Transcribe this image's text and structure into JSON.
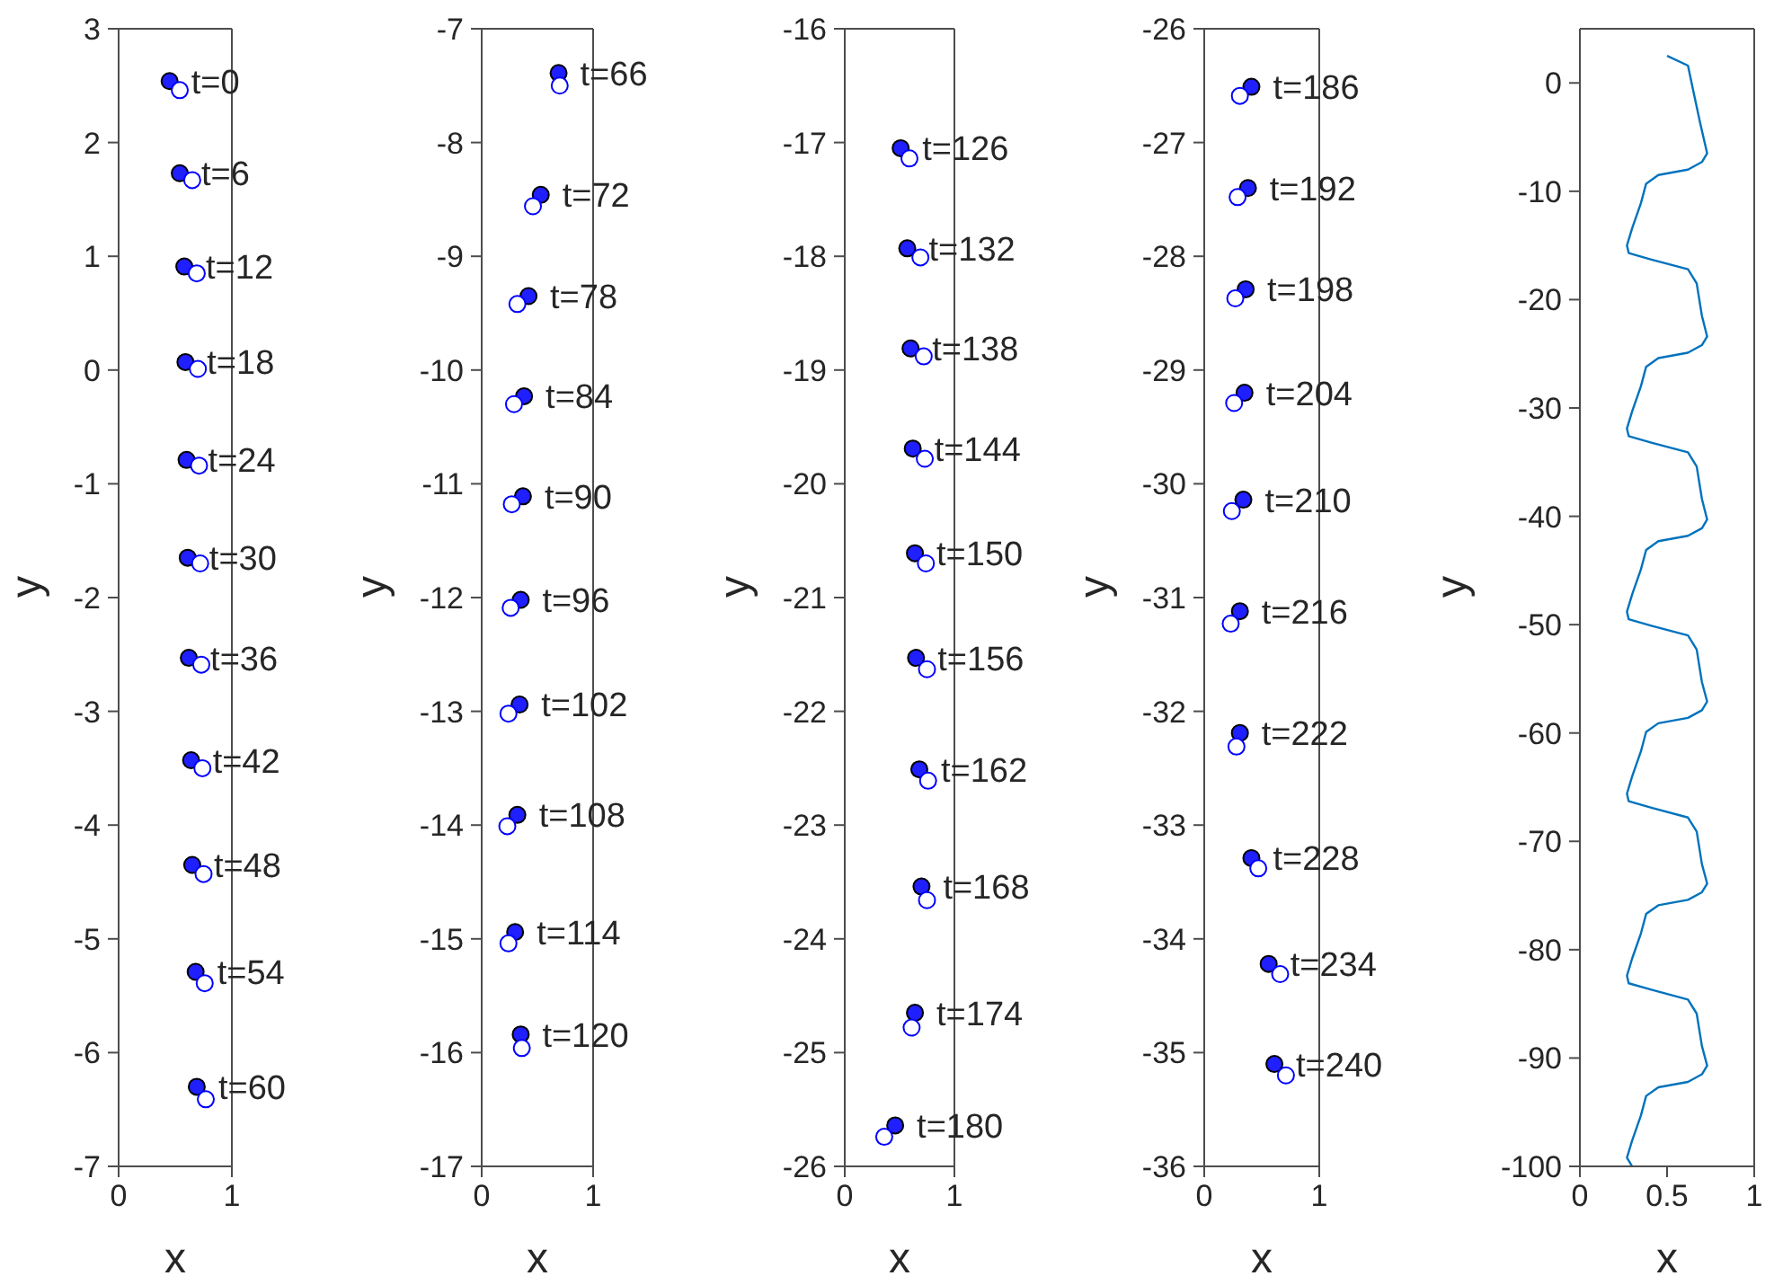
{
  "chart_data": [
    {
      "type": "scatter",
      "xlabel": "x",
      "ylabel": "y",
      "xlim": [
        0,
        1
      ],
      "xticks": [
        0,
        1
      ],
      "ylim": [
        -7,
        3
      ],
      "yticks": [
        -7,
        -6,
        -5,
        -4,
        -3,
        -2,
        -1,
        0,
        1,
        2,
        3
      ],
      "marker": "circle",
      "series": [
        {
          "color": "#1f1fff",
          "x": [
            0.45,
            0.54,
            0.58,
            0.59,
            0.6,
            0.61,
            0.62,
            0.64,
            0.65,
            0.68,
            0.69
          ],
          "values": [
            2.54,
            1.73,
            0.91,
            0.07,
            -0.79,
            -1.65,
            -2.53,
            -3.43,
            -4.35,
            -5.29,
            -6.3
          ]
        },
        {
          "color": "#0000ff",
          "x": [
            0.54,
            0.65,
            0.69,
            0.7,
            0.71,
            0.72,
            0.73,
            0.74,
            0.75,
            0.76,
            0.77
          ],
          "values": [
            2.46,
            1.67,
            0.85,
            0.01,
            -0.84,
            -1.7,
            -2.59,
            -3.5,
            -4.43,
            -5.39,
            -6.41
          ]
        }
      ],
      "annotations": [
        {
          "text": "t=0",
          "x": 0.45,
          "y": 2.54
        },
        {
          "text": "t=6",
          "x": 0.54,
          "y": 1.73
        },
        {
          "text": "t=12",
          "x": 0.58,
          "y": 0.91
        },
        {
          "text": "t=18",
          "x": 0.59,
          "y": 0.07
        },
        {
          "text": "t=24",
          "x": 0.6,
          "y": -0.79
        },
        {
          "text": "t=30",
          "x": 0.61,
          "y": -1.65
        },
        {
          "text": "t=36",
          "x": 0.62,
          "y": -2.53
        },
        {
          "text": "t=42",
          "x": 0.64,
          "y": -3.43
        },
        {
          "text": "t=48",
          "x": 0.65,
          "y": -4.35
        },
        {
          "text": "t=54",
          "x": 0.68,
          "y": -5.29
        },
        {
          "text": "t=60",
          "x": 0.69,
          "y": -6.3
        }
      ]
    },
    {
      "type": "scatter",
      "xlabel": "x",
      "ylabel": "y",
      "xlim": [
        0,
        1
      ],
      "xticks": [
        0,
        1
      ],
      "ylim": [
        -17,
        -7
      ],
      "yticks": [
        -17,
        -16,
        -15,
        -14,
        -13,
        -12,
        -11,
        -10,
        -9,
        -8,
        -7
      ],
      "marker": "circle",
      "series": [
        {
          "color": "#1f1fff",
          "x": [
            0.69,
            0.53,
            0.42,
            0.38,
            0.37,
            0.35,
            0.34,
            0.32,
            0.3,
            0.35
          ],
          "values": [
            -7.39,
            -8.46,
            -9.35,
            -10.23,
            -11.11,
            -12.02,
            -12.94,
            -13.91,
            -14.94,
            -15.84
          ]
        },
        {
          "color": "#0000ff",
          "x": [
            0.7,
            0.46,
            0.32,
            0.29,
            0.27,
            0.26,
            0.24,
            0.23,
            0.24,
            0.36
          ],
          "values": [
            -7.5,
            -8.56,
            -9.42,
            -10.3,
            -11.18,
            -12.09,
            -13.02,
            -14.01,
            -15.04,
            -15.96
          ]
        }
      ],
      "annotations": [
        {
          "text": "t=66",
          "x": 0.69,
          "y": -7.39
        },
        {
          "text": "t=72",
          "x": 0.53,
          "y": -8.46
        },
        {
          "text": "t=78",
          "x": 0.42,
          "y": -9.35
        },
        {
          "text": "t=84",
          "x": 0.38,
          "y": -10.23
        },
        {
          "text": "t=90",
          "x": 0.37,
          "y": -11.11
        },
        {
          "text": "t=96",
          "x": 0.35,
          "y": -12.02
        },
        {
          "text": "t=102",
          "x": 0.34,
          "y": -12.94
        },
        {
          "text": "t=108",
          "x": 0.32,
          "y": -13.91
        },
        {
          "text": "t=114",
          "x": 0.3,
          "y": -14.94
        },
        {
          "text": "t=120",
          "x": 0.35,
          "y": -15.84
        }
      ]
    },
    {
      "type": "scatter",
      "xlabel": "x",
      "ylabel": "y",
      "xlim": [
        0,
        1
      ],
      "xticks": [
        0,
        1
      ],
      "ylim": [
        -26,
        -16
      ],
      "yticks": [
        -26,
        -25,
        -24,
        -23,
        -22,
        -21,
        -20,
        -19,
        -18,
        -17,
        -16
      ],
      "marker": "circle",
      "series": [
        {
          "color": "#1f1fff",
          "x": [
            0.51,
            0.57,
            0.6,
            0.62,
            0.64,
            0.65,
            0.68,
            0.7,
            0.64,
            0.46
          ],
          "values": [
            -17.05,
            -17.93,
            -18.81,
            -19.69,
            -20.61,
            -21.53,
            -22.51,
            -23.54,
            -24.65,
            -25.64
          ]
        },
        {
          "color": "#0000ff",
          "x": [
            0.59,
            0.69,
            0.72,
            0.73,
            0.74,
            0.75,
            0.76,
            0.75,
            0.61,
            0.36
          ],
          "values": [
            -17.14,
            -18.01,
            -18.88,
            -19.78,
            -20.7,
            -21.63,
            -22.61,
            -23.66,
            -24.78,
            -25.74
          ]
        }
      ],
      "annotations": [
        {
          "text": "t=126",
          "x": 0.51,
          "y": -17.05
        },
        {
          "text": "t=132",
          "x": 0.57,
          "y": -17.93
        },
        {
          "text": "t=138",
          "x": 0.6,
          "y": -18.81
        },
        {
          "text": "t=144",
          "x": 0.62,
          "y": -19.69
        },
        {
          "text": "t=150",
          "x": 0.64,
          "y": -20.61
        },
        {
          "text": "t=156",
          "x": 0.65,
          "y": -21.53
        },
        {
          "text": "t=162",
          "x": 0.68,
          "y": -22.51
        },
        {
          "text": "t=168",
          "x": 0.7,
          "y": -23.54
        },
        {
          "text": "t=174",
          "x": 0.64,
          "y": -24.65
        },
        {
          "text": "t=180",
          "x": 0.46,
          "y": -25.64
        }
      ]
    },
    {
      "type": "scatter",
      "xlabel": "x",
      "ylabel": "y",
      "xlim": [
        0,
        1
      ],
      "xticks": [
        0,
        1
      ],
      "ylim": [
        -36,
        -26
      ],
      "yticks": [
        -36,
        -35,
        -34,
        -33,
        -32,
        -31,
        -30,
        -29,
        -28,
        -27,
        -26
      ],
      "marker": "circle",
      "series": [
        {
          "color": "#1f1fff",
          "x": [
            0.41,
            0.38,
            0.36,
            0.35,
            0.34,
            0.31,
            0.31,
            0.41,
            0.56,
            0.61
          ],
          "values": [
            -26.51,
            -27.4,
            -28.29,
            -29.2,
            -30.14,
            -31.12,
            -32.19,
            -33.29,
            -34.22,
            -35.1
          ]
        },
        {
          "color": "#0000ff",
          "x": [
            0.31,
            0.29,
            0.27,
            0.26,
            0.24,
            0.23,
            0.28,
            0.47,
            0.66,
            0.71
          ],
          "values": [
            -26.59,
            -27.48,
            -28.37,
            -29.29,
            -30.24,
            -31.23,
            -32.31,
            -33.38,
            -34.31,
            -35.2
          ]
        }
      ],
      "annotations": [
        {
          "text": "t=186",
          "x": 0.41,
          "y": -26.51
        },
        {
          "text": "t=192",
          "x": 0.38,
          "y": -27.4
        },
        {
          "text": "t=198",
          "x": 0.36,
          "y": -28.29
        },
        {
          "text": "t=204",
          "x": 0.35,
          "y": -29.2
        },
        {
          "text": "t=210",
          "x": 0.34,
          "y": -30.14
        },
        {
          "text": "t=216",
          "x": 0.31,
          "y": -31.12
        },
        {
          "text": "t=222",
          "x": 0.31,
          "y": -32.19
        },
        {
          "text": "t=228",
          "x": 0.41,
          "y": -33.29
        },
        {
          "text": "t=234",
          "x": 0.56,
          "y": -34.22
        },
        {
          "text": "t=240",
          "x": 0.61,
          "y": -35.1
        }
      ]
    },
    {
      "type": "line",
      "xlabel": "x",
      "ylabel": "y",
      "xlim": [
        0,
        1
      ],
      "xticks": [
        0,
        0.5,
        1
      ],
      "ylim": [
        -100,
        5
      ],
      "yticks": [
        -100,
        -90,
        -80,
        -70,
        -60,
        -50,
        -40,
        -30,
        -20,
        -10,
        0
      ],
      "marker": "none",
      "line_style": "solid",
      "series": [
        {
          "color": "#0072bd",
          "x": [
            0.5,
            0.62,
            0.65,
            0.69,
            0.73,
            0.7,
            0.62,
            0.45,
            0.38,
            0.35,
            0.3,
            0.27,
            0.28,
            0.41,
            0.62,
            0.67,
            0.7,
            0.73,
            0.7,
            0.62,
            0.45,
            0.38,
            0.35,
            0.3,
            0.27,
            0.28,
            0.41,
            0.62,
            0.67,
            0.7,
            0.73,
            0.7,
            0.62,
            0.45,
            0.38,
            0.35,
            0.3,
            0.27,
            0.28,
            0.41,
            0.62,
            0.67,
            0.7,
            0.73,
            0.7,
            0.62,
            0.45,
            0.38,
            0.35,
            0.3,
            0.27,
            0.28,
            0.41,
            0.62,
            0.67,
            0.7,
            0.73,
            0.7,
            0.62,
            0.45,
            0.38,
            0.35,
            0.3,
            0.27,
            0.28,
            0.41,
            0.62,
            0.67,
            0.7,
            0.73,
            0.7,
            0.62,
            0.45,
            0.38,
            0.35,
            0.3,
            0.27,
            0.3
          ],
          "values": [
            2.5,
            1.6,
            -0.7,
            -3.7,
            -6.5,
            -7.3,
            -8.0,
            -8.5,
            -9.3,
            -11.1,
            -13.4,
            -15.0,
            -15.7,
            -16.3,
            -17.2,
            -18.5,
            -21.5,
            -23.4,
            -24.2,
            -24.9,
            -25.4,
            -26.2,
            -28.0,
            -30.3,
            -31.9,
            -32.6,
            -33.2,
            -34.1,
            -35.4,
            -38.4,
            -40.3,
            -41.1,
            -41.8,
            -42.3,
            -43.1,
            -44.9,
            -47.2,
            -48.8,
            -49.5,
            -50.1,
            -51.0,
            -52.3,
            -55.3,
            -57.1,
            -57.9,
            -58.6,
            -59.1,
            -59.9,
            -61.7,
            -64.0,
            -65.6,
            -66.3,
            -66.9,
            -67.8,
            -69.1,
            -72.1,
            -73.9,
            -74.7,
            -75.4,
            -75.9,
            -76.7,
            -78.5,
            -80.8,
            -82.4,
            -83.1,
            -83.7,
            -84.6,
            -85.9,
            -88.9,
            -90.7,
            -91.5,
            -92.2,
            -92.7,
            -93.5,
            -95.3,
            -97.6,
            -99.2,
            -100
          ]
        }
      ]
    }
  ]
}
